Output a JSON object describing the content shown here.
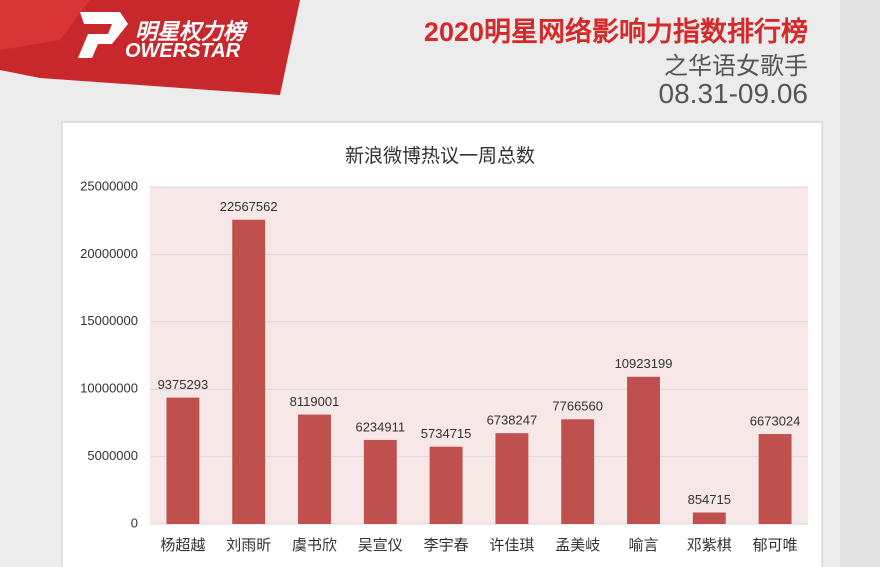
{
  "header": {
    "logo_text": "明星权力榜",
    "logo_brand": "OWERSTAR",
    "title": "2020明星网络影响力指数排行榜",
    "subtitle": "之华语女歌手",
    "date": "08.31-09.06"
  },
  "chart_data": {
    "type": "bar",
    "title": "新浪微博热议一周总数",
    "categories": [
      "杨超越",
      "刘雨昕",
      "虞书欣",
      "吴宣仪",
      "李宇春",
      "许佳琪",
      "孟美岐",
      "喻言",
      "邓紫棋",
      "郁可唯"
    ],
    "values": [
      9375293,
      22567562,
      8119001,
      6234911,
      5734715,
      6738247,
      7766560,
      10923199,
      854715,
      6673024
    ],
    "color": "#c0504d",
    "ylim": [
      0,
      25000000
    ],
    "yticks": [
      0,
      5000000,
      10000000,
      15000000,
      20000000,
      25000000
    ],
    "grid": true
  }
}
